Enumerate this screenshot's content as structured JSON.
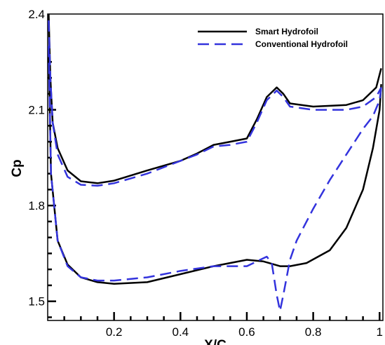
{
  "chart_data": {
    "type": "line",
    "title": "",
    "xlabel": "X/C",
    "ylabel": "Cp",
    "xlim": [
      0,
      1.01
    ],
    "ylim": [
      1.44,
      2.4
    ],
    "x_ticks": [
      0.2,
      0.4,
      0.6,
      0.8,
      1
    ],
    "x_tick_labels": [
      "0.2",
      "0.4",
      "0.6",
      "0.8",
      "1"
    ],
    "y_ticks": [
      1.5,
      1.8,
      2.1,
      2.4
    ],
    "y_tick_labels": [
      "1.5",
      "1.8",
      "2.1",
      "2.4"
    ],
    "grid": false,
    "legend_position": "top-right",
    "series": [
      {
        "name": "Smart Hydrofoil",
        "color": "#000000",
        "dash": "solid",
        "segments": [
          [
            [
              0.003,
              2.4
            ],
            [
              0.008,
              2.2
            ],
            [
              0.015,
              2.06
            ],
            [
              0.03,
              1.98
            ],
            [
              0.06,
              1.91
            ],
            [
              0.1,
              1.876
            ],
            [
              0.15,
              1.87
            ],
            [
              0.2,
              1.878
            ],
            [
              0.3,
              1.91
            ],
            [
              0.4,
              1.94
            ],
            [
              0.45,
              1.963
            ],
            [
              0.5,
              1.99
            ],
            [
              0.55,
              2.0
            ],
            [
              0.6,
              2.01
            ],
            [
              0.63,
              2.07
            ],
            [
              0.66,
              2.14
            ],
            [
              0.69,
              2.17
            ],
            [
              0.71,
              2.15
            ],
            [
              0.73,
              2.12
            ],
            [
              0.8,
              2.11
            ],
            [
              0.9,
              2.115
            ],
            [
              0.95,
              2.13
            ],
            [
              0.99,
              2.17
            ],
            [
              1.005,
              2.23
            ]
          ],
          [
            [
              0.003,
              2.3
            ],
            [
              0.01,
              1.9
            ],
            [
              0.03,
              1.69
            ],
            [
              0.06,
              1.615
            ],
            [
              0.1,
              1.575
            ],
            [
              0.15,
              1.56
            ],
            [
              0.2,
              1.555
            ],
            [
              0.3,
              1.56
            ],
            [
              0.4,
              1.585
            ],
            [
              0.5,
              1.61
            ],
            [
              0.6,
              1.63
            ],
            [
              0.65,
              1.625
            ],
            [
              0.7,
              1.61
            ],
            [
              0.73,
              1.61
            ],
            [
              0.78,
              1.62
            ],
            [
              0.85,
              1.66
            ],
            [
              0.9,
              1.73
            ],
            [
              0.95,
              1.85
            ],
            [
              0.98,
              1.98
            ],
            [
              1.0,
              2.1
            ],
            [
              1.005,
              2.18
            ]
          ]
        ]
      },
      {
        "name": "Conventional Hydrofoil",
        "color": "#3333dd",
        "dash": "dashed",
        "segments": [
          [
            [
              0.003,
              2.38
            ],
            [
              0.008,
              2.2
            ],
            [
              0.015,
              2.06
            ],
            [
              0.03,
              1.96
            ],
            [
              0.06,
              1.89
            ],
            [
              0.1,
              1.865
            ],
            [
              0.15,
              1.862
            ],
            [
              0.2,
              1.87
            ],
            [
              0.3,
              1.9
            ],
            [
              0.4,
              1.94
            ],
            [
              0.45,
              1.96
            ],
            [
              0.5,
              1.985
            ],
            [
              0.55,
              1.99
            ],
            [
              0.6,
              2.0
            ],
            [
              0.63,
              2.06
            ],
            [
              0.66,
              2.13
            ],
            [
              0.69,
              2.16
            ],
            [
              0.71,
              2.14
            ],
            [
              0.73,
              2.11
            ],
            [
              0.8,
              2.1
            ],
            [
              0.9,
              2.1
            ],
            [
              0.95,
              2.11
            ],
            [
              0.99,
              2.14
            ],
            [
              1.005,
              2.17
            ]
          ],
          [
            [
              0.003,
              2.3
            ],
            [
              0.01,
              1.9
            ],
            [
              0.03,
              1.69
            ],
            [
              0.06,
              1.61
            ],
            [
              0.1,
              1.575
            ],
            [
              0.15,
              1.565
            ],
            [
              0.2,
              1.565
            ],
            [
              0.3,
              1.575
            ],
            [
              0.4,
              1.595
            ],
            [
              0.5,
              1.61
            ],
            [
              0.6,
              1.61
            ],
            [
              0.64,
              1.63
            ],
            [
              0.66,
              1.64
            ],
            [
              0.675,
              1.62
            ],
            [
              0.69,
              1.52
            ],
            [
              0.7,
              1.47
            ],
            [
              0.71,
              1.52
            ],
            [
              0.73,
              1.63
            ],
            [
              0.75,
              1.69
            ],
            [
              0.8,
              1.79
            ],
            [
              0.85,
              1.88
            ],
            [
              0.9,
              1.96
            ],
            [
              0.95,
              2.04
            ],
            [
              0.98,
              2.08
            ],
            [
              1.0,
              2.13
            ],
            [
              1.005,
              2.17
            ]
          ]
        ]
      }
    ]
  }
}
